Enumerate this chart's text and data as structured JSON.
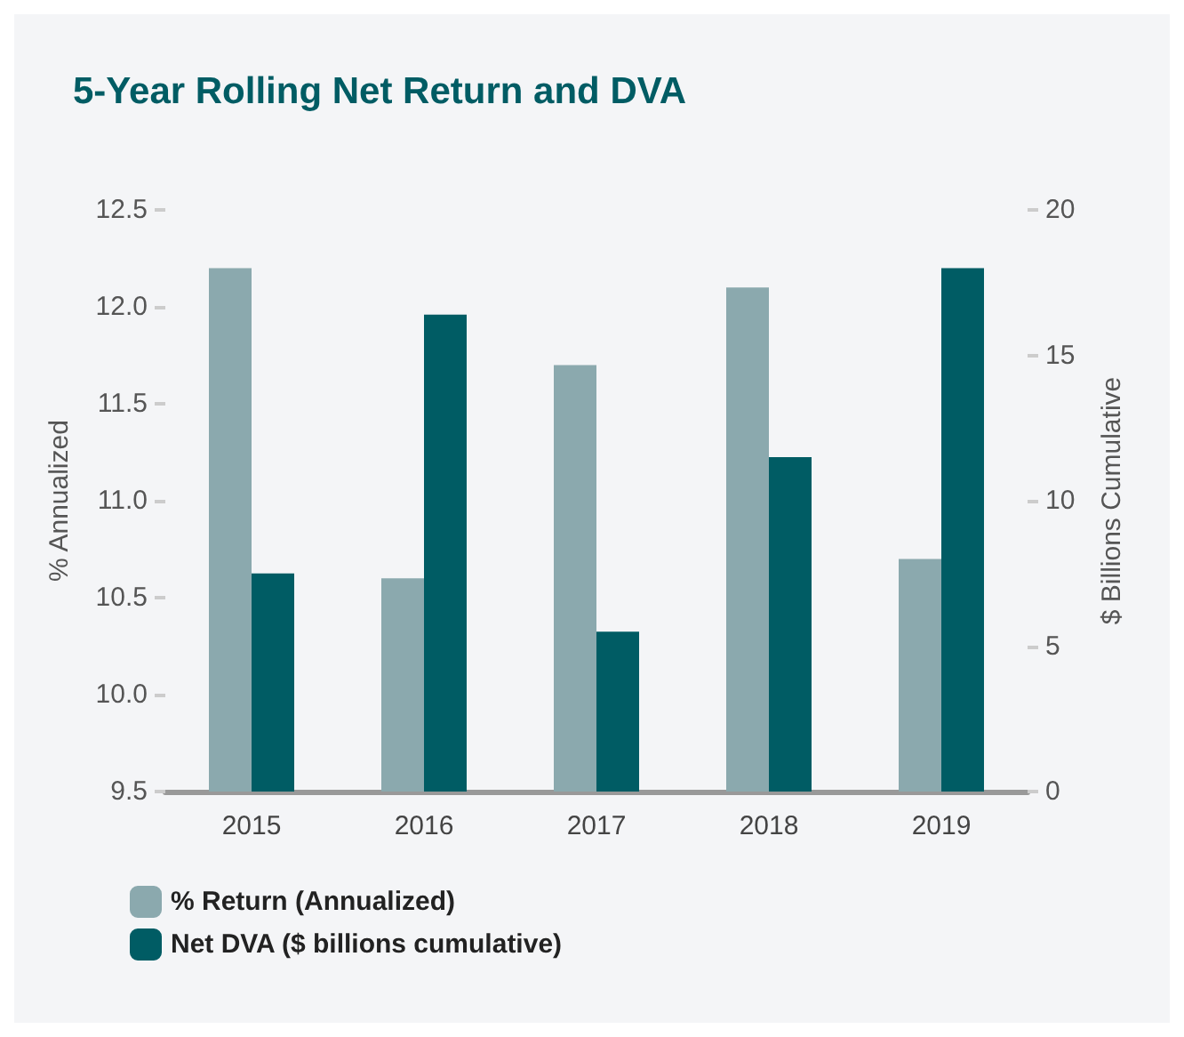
{
  "chart_data": {
    "type": "bar",
    "title": "5-Year Rolling Net Return and DVA",
    "categories": [
      "2015",
      "2016",
      "2017",
      "2018",
      "2019"
    ],
    "series": [
      {
        "name": "% Return (Annualized)",
        "color": "#8ba9ae",
        "values": [
          12.2,
          10.6,
          11.7,
          12.1,
          10.7
        ]
      },
      {
        "name": "Net DVA ($ billions cumulative)",
        "color": "#005c64",
        "values": [
          7.5,
          16.4,
          5.5,
          11.5,
          18.0
        ],
        "axis": "y2"
      }
    ],
    "ylabel": "% Annualized",
    "y2label": "$ Billions Cumulative",
    "ylim": [
      9.5,
      12.5
    ],
    "yticks": [
      {
        "value": 9.5,
        "label": "9.5"
      },
      {
        "value": 10,
        "label": "10.0"
      },
      {
        "value": 10.5,
        "label": "10.5"
      },
      {
        "value": 11,
        "label": "11.0"
      },
      {
        "value": 11.5,
        "label": "11.5"
      },
      {
        "value": 12,
        "label": "12.0"
      },
      {
        "value": 12.5,
        "label": "12.5"
      }
    ],
    "y2lim": [
      0,
      20
    ],
    "y2ticks": [
      0,
      5,
      10,
      15,
      20
    ],
    "grid": false,
    "legend": "bottom left"
  }
}
